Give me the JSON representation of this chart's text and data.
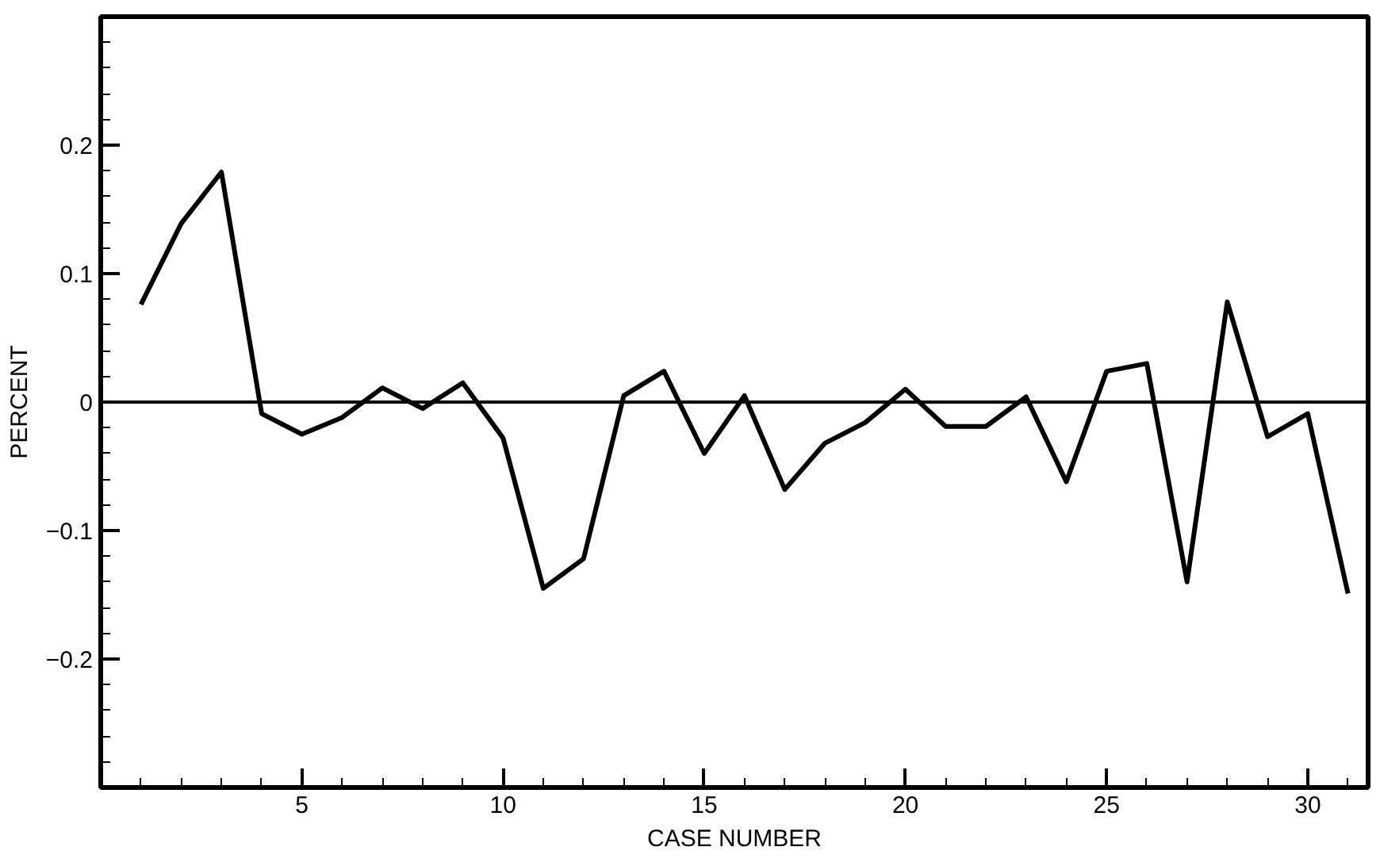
{
  "chart_data": {
    "type": "line",
    "xlabel": "CASE NUMBER",
    "ylabel": "PERCENT",
    "x": [
      1,
      2,
      3,
      4,
      5,
      6,
      7,
      8,
      9,
      10,
      11,
      12,
      13,
      14,
      15,
      16,
      17,
      18,
      19,
      20,
      21,
      22,
      23,
      24,
      25,
      26,
      27,
      28,
      29,
      30,
      31
    ],
    "series": [
      {
        "color": "#000000",
        "values": [
          0.076,
          0.139,
          0.179,
          -0.009,
          -0.025,
          -0.012,
          0.011,
          -0.005,
          0.015,
          -0.028,
          -0.145,
          -0.122,
          0.005,
          0.024,
          -0.04,
          0.005,
          -0.068,
          -0.032,
          -0.016,
          0.01,
          -0.019,
          -0.019,
          0.004,
          -0.062,
          0.024,
          0.03,
          -0.14,
          0.078,
          -0.027,
          -0.009,
          -0.149
        ]
      }
    ],
    "xlim": [
      0,
      31.5
    ],
    "ylim": [
      -0.3,
      0.3
    ],
    "xticks": [
      5,
      10,
      15,
      20,
      25,
      30
    ],
    "yticks": [
      {
        "value": -0.2,
        "label": "−0.2"
      },
      {
        "value": -0.1,
        "label": "−0.1"
      },
      0,
      0.1,
      0.2
    ],
    "ref_lines": [
      {
        "axis": "y",
        "value": 0,
        "color": "#000000"
      }
    ],
    "grid": false,
    "line_style": "solid"
  }
}
